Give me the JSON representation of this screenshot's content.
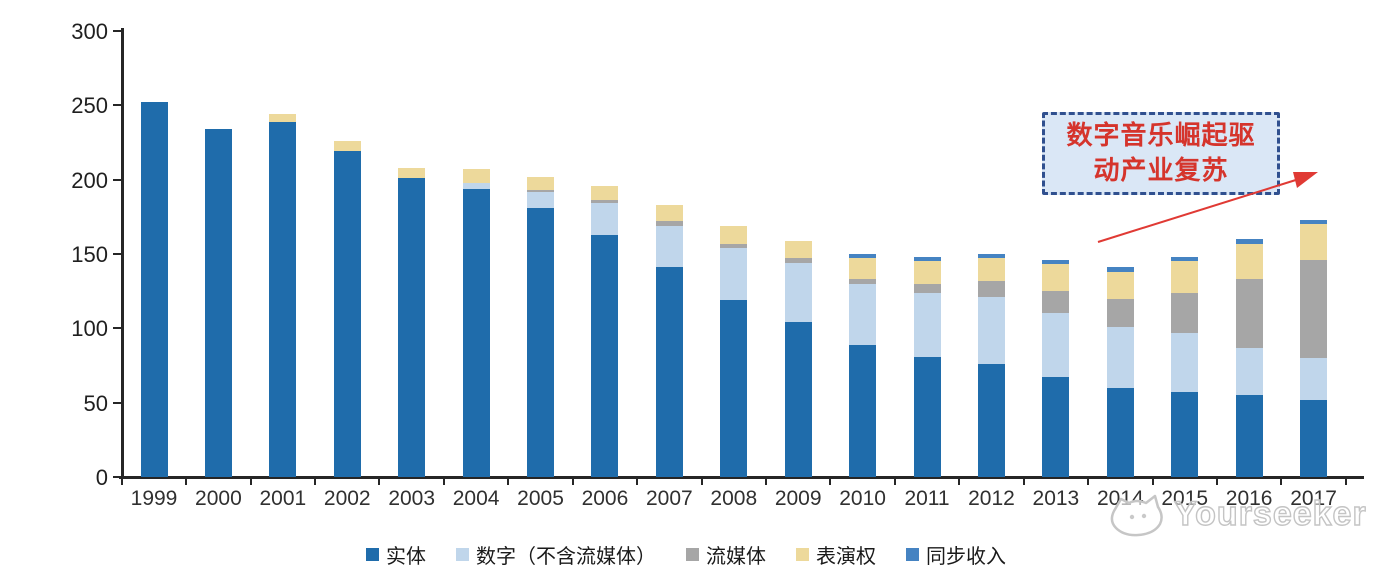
{
  "chart_data": {
    "type": "bar",
    "stacked": true,
    "title": "",
    "xlabel": "",
    "ylabel": "",
    "ylim": [
      0,
      300
    ],
    "y_ticks": [
      0,
      50,
      100,
      150,
      200,
      250,
      300
    ],
    "grid": false,
    "legend_position": "bottom",
    "categories": [
      "1999",
      "2000",
      "2001",
      "2002",
      "2003",
      "2004",
      "2005",
      "2006",
      "2007",
      "2008",
      "2009",
      "2010",
      "2011",
      "2012",
      "2013",
      "2014",
      "2015",
      "2016",
      "2017"
    ],
    "series": [
      {
        "name": "实体",
        "color": "#1F6CAB",
        "values": [
          252,
          234,
          239,
          219,
          201,
          194,
          181,
          163,
          141,
          119,
          104,
          89,
          81,
          76,
          67,
          60,
          57,
          55,
          52
        ]
      },
      {
        "name": "数字（不含流媒体）",
        "color": "#C0D6EB",
        "values": [
          0,
          0,
          0,
          0,
          0,
          4,
          11,
          21,
          28,
          35,
          40,
          41,
          43,
          45,
          43,
          41,
          40,
          32,
          28
        ]
      },
      {
        "name": "流媒体",
        "color": "#A6A6A6",
        "values": [
          0,
          0,
          0,
          0,
          0,
          0,
          1,
          2,
          3,
          3,
          3,
          3,
          6,
          11,
          15,
          19,
          27,
          46,
          66
        ]
      },
      {
        "name": "表演权",
        "color": "#EDD99B",
        "values": [
          0,
          0,
          5,
          7,
          7,
          9,
          9,
          10,
          11,
          12,
          12,
          14,
          15,
          15,
          18,
          18,
          21,
          24,
          24
        ]
      },
      {
        "name": "同步收入",
        "color": "#4583C2",
        "values": [
          0,
          0,
          0,
          0,
          0,
          0,
          0,
          0,
          0,
          0,
          0,
          3,
          3,
          3,
          3,
          3,
          3,
          3,
          3
        ]
      }
    ]
  },
  "annotation": {
    "lines": [
      "数字音乐崛起驱",
      "动产业复苏"
    ],
    "text_color": "#D5342C",
    "box_fill": "#DAE7F6",
    "border_color": "#30508F",
    "arrow_color": "#E03A34"
  },
  "watermark": {
    "text": "Yourseeker",
    "logo_icon": "cat-logo",
    "color": "#C4C4C4"
  }
}
